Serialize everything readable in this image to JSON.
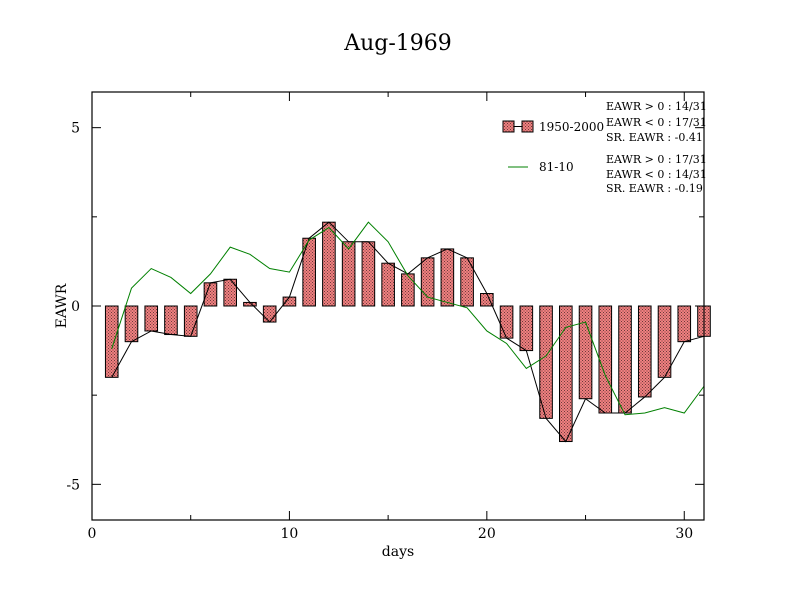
{
  "chart_data": {
    "type": "bar",
    "title": "Aug-1969",
    "xlabel": "days",
    "ylabel": "EAWR",
    "xlim": [
      0,
      31
    ],
    "ylim": [
      -6,
      6
    ],
    "x_ticks": [
      0,
      10,
      20,
      30
    ],
    "y_ticks": [
      -5,
      0,
      5
    ],
    "x_tick_labels": [
      "0",
      "10",
      "20",
      "30"
    ],
    "y_tick_labels": [
      "-5",
      "0",
      "5"
    ],
    "x": [
      1,
      2,
      3,
      4,
      5,
      6,
      7,
      8,
      9,
      10,
      11,
      12,
      13,
      14,
      15,
      16,
      17,
      18,
      19,
      20,
      21,
      22,
      23,
      24,
      25,
      26,
      27,
      28,
      29,
      30,
      31
    ],
    "series": [
      {
        "name": "1950-2000",
        "style": "hatched bars with black connecting line",
        "color": "#f08080",
        "values": [
          -2.0,
          -1.0,
          -0.7,
          -0.8,
          -0.85,
          0.65,
          0.75,
          0.1,
          -0.45,
          0.25,
          1.9,
          2.35,
          1.8,
          1.8,
          1.2,
          0.9,
          1.35,
          1.6,
          1.35,
          0.35,
          -0.9,
          -1.25,
          -3.15,
          -3.8,
          -2.6,
          -3.0,
          -3.0,
          -2.55,
          -2.0,
          -1.0,
          -0.85
        ]
      },
      {
        "name": "81-10",
        "style": "line",
        "color": "#008000",
        "values": [
          -1.2,
          0.5,
          1.05,
          0.8,
          0.35,
          0.9,
          1.65,
          1.45,
          1.05,
          0.95,
          1.85,
          2.2,
          1.6,
          2.35,
          1.8,
          0.85,
          0.25,
          0.1,
          -0.05,
          -0.7,
          -1.05,
          -1.75,
          -1.4,
          -0.6,
          -0.45,
          -1.95,
          -3.05,
          -3.0,
          -2.85,
          -3.0,
          -2.25
        ]
      }
    ],
    "legend": {
      "placement": "top-right",
      "entries": [
        {
          "label": "1950-2000",
          "stats": [
            "EAWR > 0 : 14/31",
            "EAWR < 0 : 17/31",
            "SR. EAWR : -0.41"
          ]
        },
        {
          "label": "81-10",
          "stats": [
            "EAWR > 0 : 17/31",
            "EAWR < 0 : 14/31",
            "SR. EAWR : -0.19"
          ]
        }
      ]
    }
  }
}
